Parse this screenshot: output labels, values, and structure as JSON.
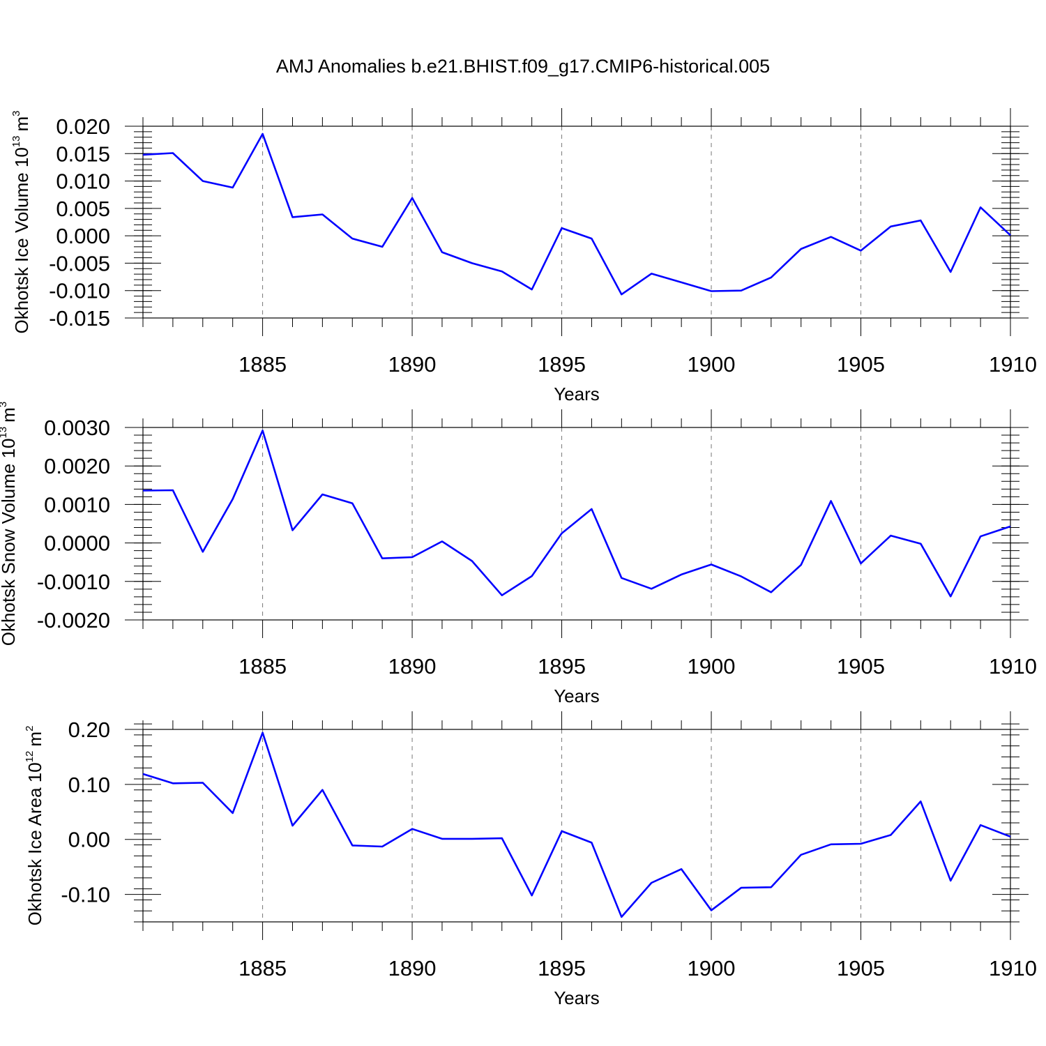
{
  "chart_data": {
    "type": "line",
    "title": "AMJ Anomalies b.e21.BHIST.f09_g17.CMIP6-historical.005",
    "line_color": "#0000ff",
    "x": [
      1881,
      1882,
      1883,
      1884,
      1885,
      1886,
      1887,
      1888,
      1889,
      1890,
      1891,
      1892,
      1893,
      1894,
      1895,
      1896,
      1897,
      1898,
      1899,
      1900,
      1901,
      1902,
      1903,
      1904,
      1905,
      1906,
      1907,
      1908,
      1909,
      1910
    ],
    "xlim": [
      1881,
      1910
    ],
    "xticks": [
      1885,
      1890,
      1895,
      1900,
      1905,
      1910
    ],
    "xtick_labels": [
      "1885",
      "1890",
      "1895",
      "1900",
      "1905",
      "1910"
    ],
    "panels": [
      {
        "name": "ice-volume",
        "ylabel_main": "Okhotsk Ice Volume 10",
        "ylabel_exp": "13",
        "ylabel_unit": "m",
        "ylabel_unit_exp": "3",
        "xlabel": "Years",
        "ylim": [
          -0.015,
          0.02
        ],
        "yticks": [
          0.02,
          0.015,
          0.01,
          0.005,
          0.0,
          -0.005,
          -0.01,
          -0.015
        ],
        "ytick_labels": [
          "0.020",
          "0.015",
          "0.010",
          "0.005",
          "0.000",
          "-0.005",
          "-0.010",
          "-0.015"
        ],
        "minor_step": 0.001,
        "values": [
          0.0148,
          0.0151,
          0.01,
          0.0088,
          0.0186,
          0.0034,
          0.0039,
          -0.0005,
          -0.002,
          0.0069,
          -0.003,
          -0.005,
          -0.0065,
          -0.0098,
          0.0014,
          -0.0005,
          -0.0107,
          -0.0069,
          -0.0085,
          -0.0101,
          -0.01,
          -0.0076,
          -0.0024,
          -0.0002,
          -0.0027,
          0.0017,
          0.0028,
          -0.0066,
          0.0052,
          0.0001
        ]
      },
      {
        "name": "snow-volume",
        "ylabel_main": "Okhotsk Snow Volume 10",
        "ylabel_exp": "13",
        "ylabel_unit": "m",
        "ylabel_unit_exp": "3",
        "xlabel": "Years",
        "ylim": [
          -0.002,
          0.003
        ],
        "yticks": [
          0.003,
          0.002,
          0.001,
          0.0,
          -0.001,
          -0.002
        ],
        "ytick_labels": [
          "0.0030",
          "0.0020",
          "0.0010",
          "0.0000",
          "-0.0010",
          "-0.0020"
        ],
        "minor_step": 0.0002,
        "values": [
          0.00136,
          0.00137,
          -0.00023,
          0.00114,
          0.00292,
          0.00033,
          0.00126,
          0.00103,
          -0.0004,
          -0.00037,
          4e-05,
          -0.00047,
          -0.00136,
          -0.00086,
          0.00025,
          0.00088,
          -0.00091,
          -0.00119,
          -0.00082,
          -0.00056,
          -0.00087,
          -0.00128,
          -0.00057,
          0.00109,
          -0.00053,
          0.00019,
          -2e-05,
          -0.00139,
          0.00017,
          0.00043
        ]
      },
      {
        "name": "ice-area",
        "ylabel_main": "Okhotsk Ice Area 10",
        "ylabel_exp": "12",
        "ylabel_unit": "m",
        "ylabel_unit_exp": "2",
        "xlabel": "Years",
        "ylim": [
          -0.15,
          0.2
        ],
        "yticks": [
          0.2,
          0.1,
          0.0,
          -0.1
        ],
        "ytick_labels": [
          "0.20",
          "0.10",
          "0.00",
          "-0.10"
        ],
        "minor_step": 0.02,
        "values": [
          0.119,
          0.102,
          0.103,
          0.048,
          0.194,
          0.025,
          0.09,
          -0.011,
          -0.013,
          0.019,
          0.001,
          0.001,
          0.002,
          -0.102,
          0.015,
          -0.006,
          -0.141,
          -0.079,
          -0.054,
          -0.129,
          -0.088,
          -0.087,
          -0.028,
          -0.009,
          -0.008,
          0.008,
          0.069,
          -0.075,
          0.026,
          0.005
        ]
      }
    ]
  }
}
